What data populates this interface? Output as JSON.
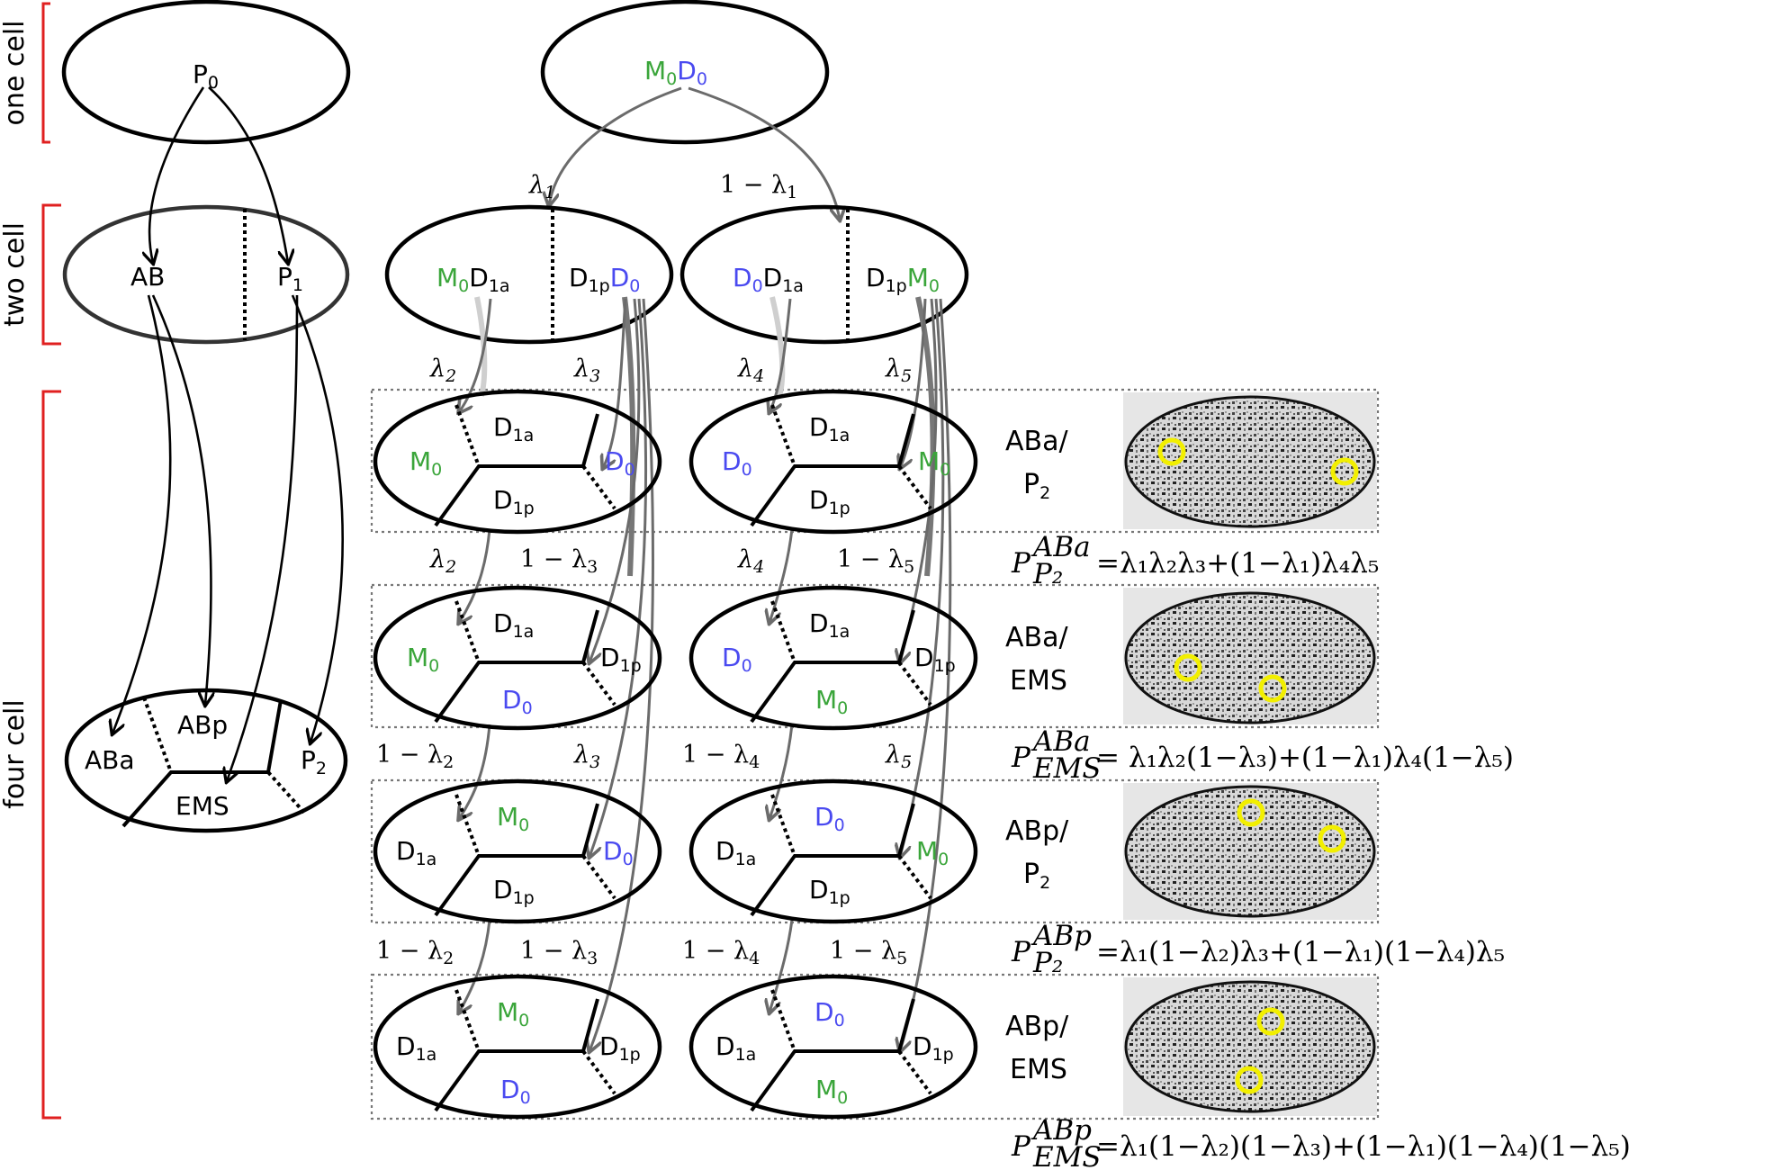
{
  "stages": {
    "one_cell": "one cell",
    "two_cell": "two cell",
    "four_cell": "four cell"
  },
  "left": {
    "p0": {
      "main": "P",
      "sub": "0"
    },
    "ab": "AB",
    "p1": {
      "main": "P",
      "sub": "1"
    },
    "aba": "ABa",
    "abp": "ABp",
    "p2": {
      "main": "P",
      "sub": "2"
    },
    "ems": "EMS"
  },
  "top": {
    "m": "M",
    "m_sub": "0",
    "d": "D",
    "d_sub": "0"
  },
  "lambdas": {
    "l1": "λ",
    "l1_sub": "1",
    "one_minus": "1 − λ",
    "sub2": "2",
    "sub3": "3",
    "sub4": "4",
    "sub5": "5"
  },
  "labels": {
    "m0": "M",
    "d0": "D",
    "d1a": "D",
    "d1p": "D",
    "sub0": "0",
    "sub1a": "1a",
    "sub1p": "1p"
  },
  "rows": [
    {
      "label1": "ABa/",
      "label2_main": "P",
      "label2_sub": "2"
    },
    {
      "label1": "ABa/",
      "label2_main": "EMS",
      "label2_sub": ""
    },
    {
      "label1": "ABp/",
      "label2_main": "P",
      "label2_sub": "2"
    },
    {
      "label1": "ABp/",
      "label2_main": "EMS",
      "label2_sub": ""
    }
  ],
  "equations": [
    {
      "P": "P",
      "sup": "ABa",
      "sub": "P₂",
      "rhs": "=λ₁λ₂λ₃+(1−λ₁)λ₄λ₅"
    },
    {
      "P": "P",
      "sup": "ABa",
      "sub": "EMS",
      "rhs": " = λ₁λ₂(1−λ₃)+(1−λ₁)λ₄(1−λ₅)"
    },
    {
      "P": "P",
      "sup": "ABp",
      "sub": "P₂",
      "rhs": "=λ₁(1−λ₂)λ₃+(1−λ₁)(1−λ₄)λ₅"
    },
    {
      "P": "P",
      "sup": "ABp",
      "sub": "EMS",
      "rhs": "=λ₁(1−λ₂)(1−λ₃)+(1−λ₁)(1−λ₄)(1−λ₅)"
    }
  ],
  "colors": {
    "green": "#3aa53a",
    "blue": "#4a4af0",
    "red": "#e02020",
    "yellow": "#f2ef00",
    "gray": "#6b6b6b"
  }
}
